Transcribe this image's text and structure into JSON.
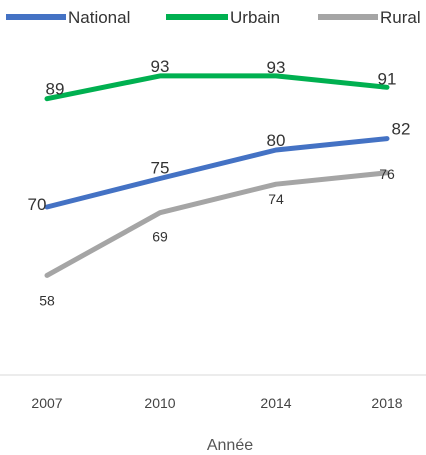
{
  "chart_data": {
    "type": "line",
    "categories": [
      "2007",
      "2010",
      "2014",
      "2018"
    ],
    "xlabel": "Année",
    "ylabel": "",
    "ylim": [
      50,
      100
    ],
    "legend_position": "top",
    "grid": false,
    "series": [
      {
        "name": "National",
        "values": [
          70,
          75,
          80,
          82
        ],
        "color": "#4472C4"
      },
      {
        "name": "Urbain",
        "values": [
          89,
          93,
          93,
          91
        ],
        "color": "#00B050"
      },
      {
        "name": "Rural",
        "values": [
          58,
          69,
          74,
          76
        ],
        "color": "#A5A5A5"
      }
    ]
  }
}
